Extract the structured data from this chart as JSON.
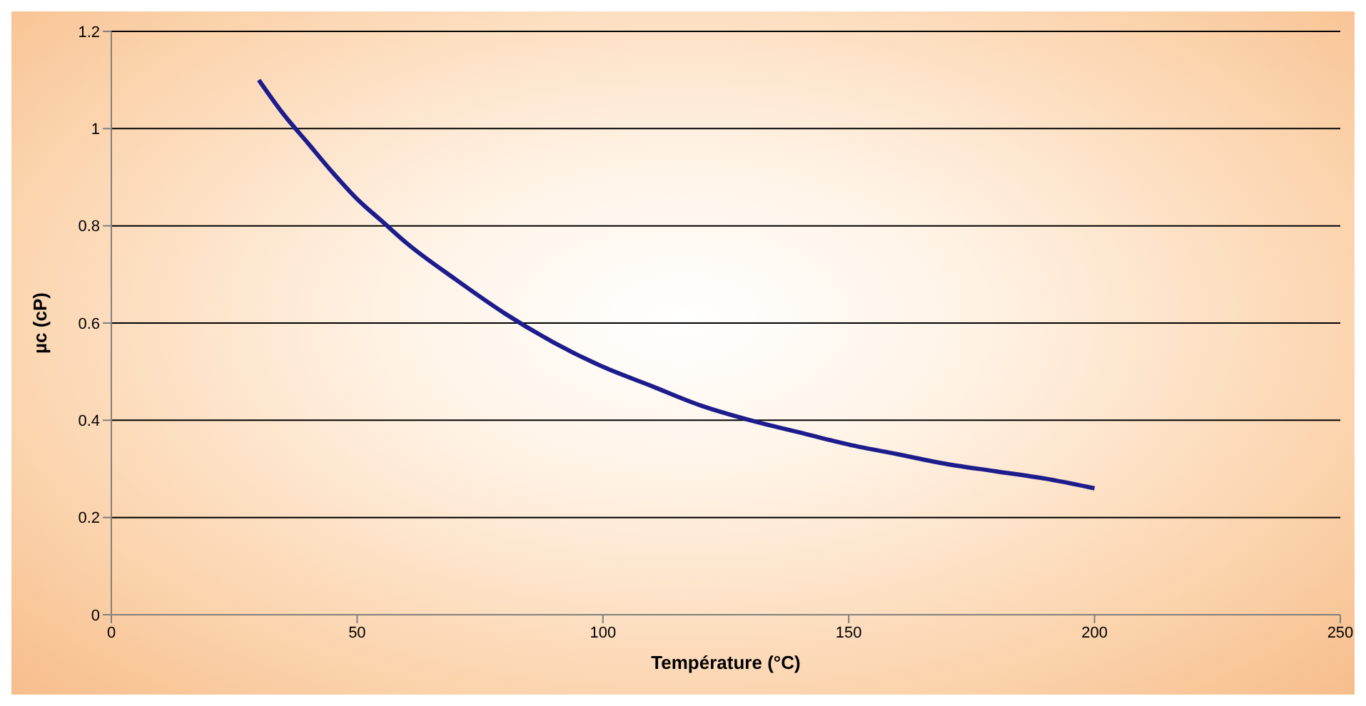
{
  "chart_data": {
    "type": "line",
    "xlabel": "Température (°C)",
    "ylabel": "µc (cP)",
    "x": [
      30,
      35,
      40,
      45,
      50,
      55,
      60,
      70,
      80,
      90,
      100,
      110,
      120,
      130,
      140,
      150,
      160,
      170,
      180,
      190,
      200
    ],
    "series": [
      {
        "color": "#1c1c8c",
        "values": [
          1.1,
          1.03,
          0.97,
          0.91,
          0.855,
          0.81,
          0.765,
          0.69,
          0.62,
          0.56,
          0.51,
          0.47,
          0.43,
          0.4,
          0.375,
          0.35,
          0.33,
          0.31,
          0.295,
          0.28,
          0.26
        ]
      }
    ],
    "xlim": [
      0,
      250
    ],
    "xticks": [
      0,
      50,
      100,
      150,
      200,
      250
    ],
    "ylim": [
      0,
      1.2
    ],
    "yticks": [
      0,
      0.2,
      0.4,
      0.6,
      0.8,
      1,
      1.2
    ],
    "grid": "y",
    "legend": false,
    "marker": "none",
    "line_style": "solid"
  }
}
